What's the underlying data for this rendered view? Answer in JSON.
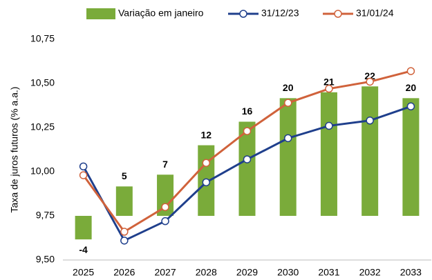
{
  "chart_data": {
    "type": "bar-line",
    "y_axis_label": "Taxa de juros futuros (% a.a.)",
    "categories": [
      "2025",
      "2026",
      "2027",
      "2028",
      "2029",
      "2030",
      "2031",
      "2032",
      "2033"
    ],
    "ylim": [
      9.5,
      10.75
    ],
    "yticks": [
      {
        "value": 9.5,
        "label": "9,50"
      },
      {
        "value": 9.75,
        "label": "9,75"
      },
      {
        "value": 10.0,
        "label": "10,00"
      },
      {
        "value": 10.25,
        "label": "10,25"
      },
      {
        "value": 10.5,
        "label": "10,50"
      },
      {
        "value": 10.75,
        "label": "10,75"
      }
    ],
    "y2lim": [
      -7.5,
      30
    ],
    "grid": false,
    "legend": "top",
    "series": [
      {
        "name": "Variação em janeiro",
        "type": "bar",
        "axis": "y2",
        "color": "#7aab3a",
        "values": [
          -4,
          5,
          7,
          12,
          16,
          20,
          21,
          22,
          20
        ]
      },
      {
        "name": "31/12/23",
        "type": "line",
        "color": "#1f3f8c",
        "values": [
          10.03,
          9.61,
          9.72,
          9.94,
          10.07,
          10.19,
          10.26,
          10.29,
          10.37
        ]
      },
      {
        "name": "31/01/24",
        "type": "line",
        "color": "#d0623b",
        "values": [
          9.98,
          9.66,
          9.8,
          10.05,
          10.23,
          10.39,
          10.47,
          10.51,
          10.57
        ]
      }
    ]
  }
}
